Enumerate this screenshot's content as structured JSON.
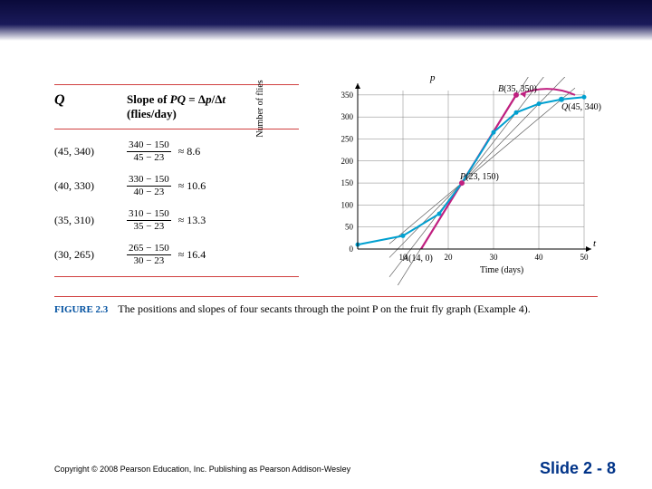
{
  "table": {
    "header_q": "Q",
    "header_slope_line1": "Slope of PQ = Δp/Δt",
    "header_slope_line2": "(flies/day)",
    "rows": [
      {
        "q": "(45, 340)",
        "num": "340 − 150",
        "den": "45 − 23",
        "approx": "≈ 8.6"
      },
      {
        "q": "(40, 330)",
        "num": "330 − 150",
        "den": "40 − 23",
        "approx": "≈ 10.6"
      },
      {
        "q": "(35, 310)",
        "num": "310 − 150",
        "den": "35 − 23",
        "approx": "≈ 13.3"
      },
      {
        "q": "(30, 265)",
        "num": "265 − 150",
        "den": "30 − 23",
        "approx": "≈ 16.4"
      }
    ]
  },
  "chart": {
    "type": "line",
    "xlim": [
      0,
      50
    ],
    "ylim": [
      0,
      360
    ],
    "xticks": [
      10,
      20,
      30,
      40,
      50
    ],
    "yticks": [
      50,
      100,
      150,
      200,
      250,
      300,
      350
    ],
    "xlabel": "Time (days)",
    "ylabel": "Number of flies",
    "p_axis": "p",
    "t_axis": "t",
    "curve_color": "#00a0d0",
    "secant_color": "#606060",
    "tangent_color": "#c02080",
    "grid_color": "#808080",
    "data_points": [
      {
        "t": 0,
        "p": 10
      },
      {
        "t": 10,
        "p": 30
      },
      {
        "t": 18,
        "p": 80
      },
      {
        "t": 23,
        "p": 150
      },
      {
        "t": 30,
        "p": 265
      },
      {
        "t": 35,
        "p": 310
      },
      {
        "t": 40,
        "p": 330
      },
      {
        "t": 45,
        "p": 340
      },
      {
        "t": 50,
        "p": 345
      }
    ],
    "secants": [
      {
        "t2": 45,
        "p2": 340
      },
      {
        "t2": 40,
        "p2": 330
      },
      {
        "t2": 35,
        "p2": 310
      },
      {
        "t2": 30,
        "p2": 265
      }
    ],
    "P": {
      "t": 23,
      "p": 150,
      "label": "P(23, 150)"
    },
    "B": {
      "t": 35,
      "p": 350,
      "label": "B(35, 350)"
    },
    "Q": {
      "t": 45,
      "p": 340,
      "label": "Q(45, 340)"
    },
    "A": {
      "t": 14,
      "p": 0,
      "label": "A(14, 0)"
    }
  },
  "caption": {
    "figure": "FIGURE 2.3",
    "text": "The positions and slopes of four secants through the point P on the fruit fly graph (Example 4)."
  },
  "footer": {
    "copyright": "Copyright © 2008 Pearson Education, Inc.  Publishing as Pearson Addison-Wesley",
    "slide": "Slide 2 - 8"
  }
}
